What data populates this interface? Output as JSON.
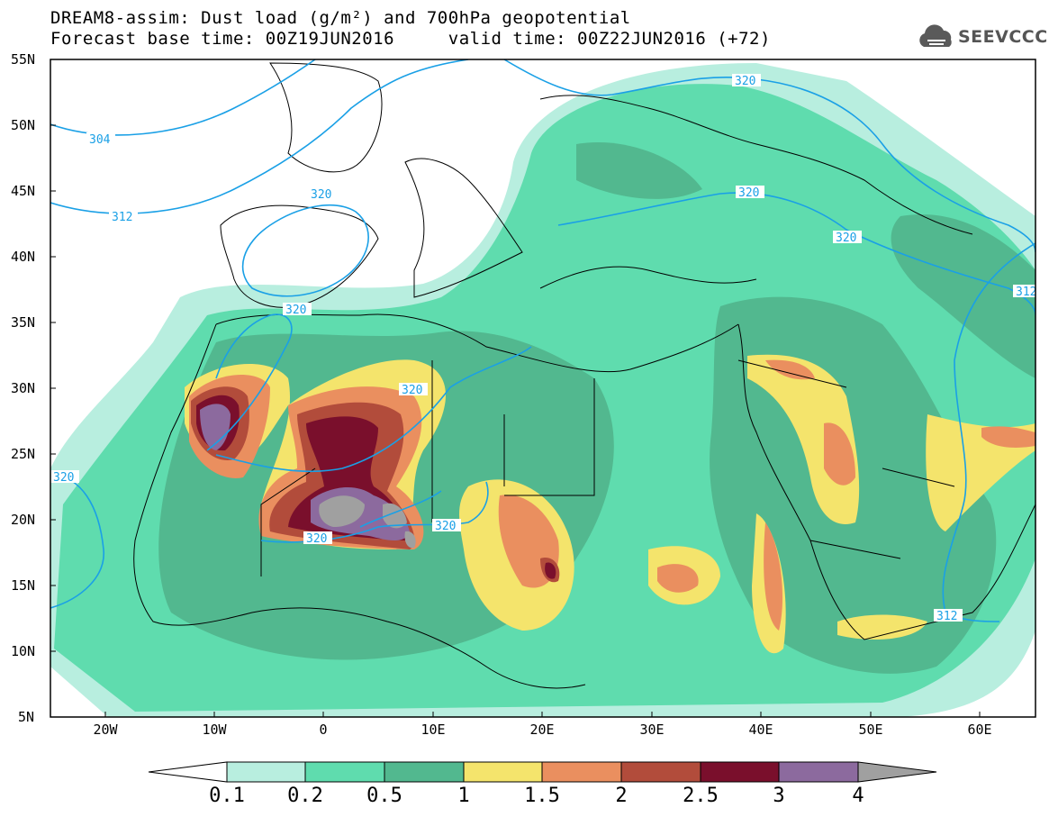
{
  "header": {
    "title_line1": "DREAM8-assim: Dust load (g/m²) and 700hPa geopotential",
    "forecast_base_label": "Forecast base time: 00Z19JUN2016",
    "valid_time_label": "valid time: 00Z22JUN2016 (+72)"
  },
  "logo": {
    "text": "SEEVCCC",
    "icon": "cloud-icon"
  },
  "map": {
    "region": "North Africa, Middle East and Europe",
    "lat_range": [
      5,
      55
    ],
    "lon_range": [
      -25,
      65
    ],
    "lat_ticks": [
      "55N",
      "50N",
      "45N",
      "40N",
      "35N",
      "30N",
      "25N",
      "20N",
      "15N",
      "10N",
      "5N"
    ],
    "lon_ticks": [
      "20W",
      "10W",
      "0",
      "10E",
      "20E",
      "30E",
      "40E",
      "50E",
      "60E"
    ],
    "contour_color": "#1aa0e6",
    "contour_labels": [
      "304",
      "312",
      "320",
      "320",
      "320",
      "320",
      "320",
      "320",
      "320",
      "320",
      "320",
      "312",
      "312"
    ]
  },
  "colorbar": {
    "labels": [
      "0.1",
      "0.2",
      "0.5",
      "1",
      "1.5",
      "2",
      "2.5",
      "3",
      "4"
    ],
    "colors": [
      "#ffffff",
      "#b8eedf",
      "#5fdcae",
      "#52b88f",
      "#f4e46c",
      "#ea8f5f",
      "#b24c3b",
      "#7a0f2c",
      "#8c6a9e",
      "#a0a0a0"
    ]
  }
}
